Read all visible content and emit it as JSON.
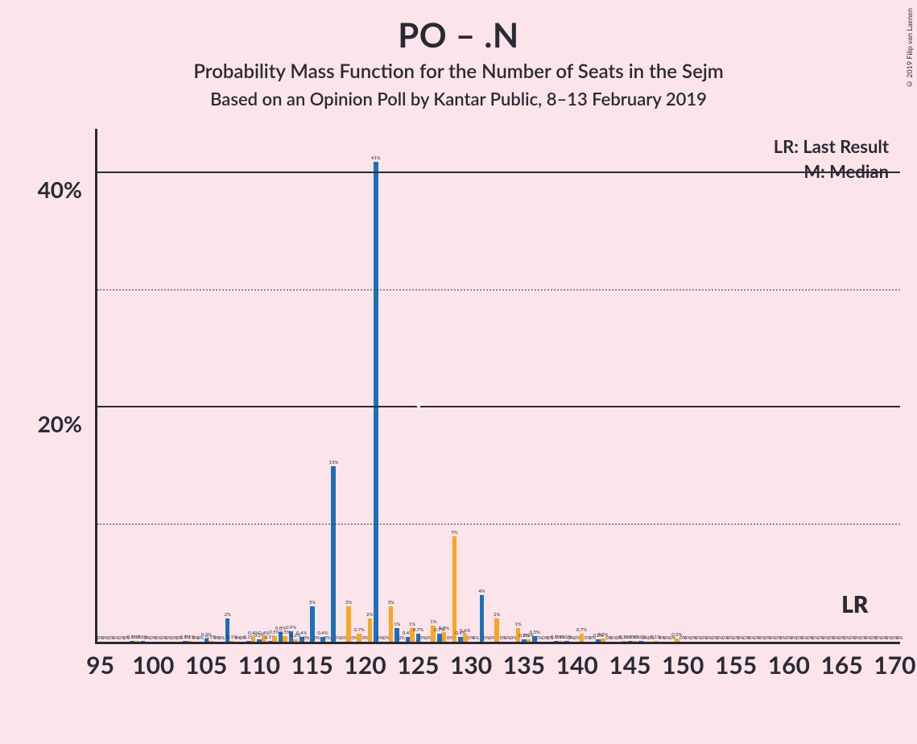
{
  "title": "PO – .N",
  "subtitle1": "Probability Mass Function for the Number of Seats in the Sejm",
  "subtitle2": "Based on an Opinion Poll by Kantar Public, 8–13 February 2019",
  "copyright": "© 2019 Filip van Laenen",
  "legend": {
    "lr": "LR: Last Result",
    "m": "M: Median"
  },
  "chart": {
    "type": "bar",
    "background_color": "#fce5ea",
    "axis_color": "#2a2a35",
    "grid_solid_color": "#2a2a35",
    "grid_dotted_color": "#2a2a3580",
    "ylim": [
      0,
      44
    ],
    "y_major_ticks": [
      20,
      40
    ],
    "y_minor_ticks": [
      10,
      30
    ],
    "y_tick_labels": {
      "20": "20%",
      "40": "40%"
    },
    "x_range": [
      95,
      170
    ],
    "x_major_step": 5,
    "bar_gap_ratio": 0.15,
    "series_colors": {
      "blue": "#1d70b8",
      "orange": "#f6a724"
    },
    "title_fontsize": 42,
    "subtitle_fontsize": 24,
    "axis_label_fontsize": 30,
    "bar_label_fontsize": 6,
    "lr_position": 166,
    "lr_text": "LR",
    "median_position": 125,
    "median_y_percent": 20,
    "data": [
      {
        "x": 95,
        "blue": 0,
        "orange": 0
      },
      {
        "x": 96,
        "blue": 0,
        "orange": 0
      },
      {
        "x": 97,
        "blue": 0,
        "orange": 0
      },
      {
        "x": 98,
        "blue": 0.1,
        "orange": 0.1
      },
      {
        "x": 99,
        "blue": 0.1,
        "orange": 0
      },
      {
        "x": 100,
        "blue": 0,
        "orange": 0
      },
      {
        "x": 101,
        "blue": 0,
        "orange": 0
      },
      {
        "x": 102,
        "blue": 0,
        "orange": 0
      },
      {
        "x": 103,
        "blue": 0.1,
        "orange": 0.1
      },
      {
        "x": 104,
        "blue": 0,
        "orange": 0
      },
      {
        "x": 105,
        "blue": 0.3,
        "orange": 0.1
      },
      {
        "x": 106,
        "blue": 0,
        "orange": 0
      },
      {
        "x": 107,
        "blue": 2,
        "orange": 0.1
      },
      {
        "x": 108,
        "blue": 0,
        "orange": 0
      },
      {
        "x": 109,
        "blue": 0.1,
        "orange": 0.4
      },
      {
        "x": 110,
        "blue": 0.2,
        "orange": 0.4
      },
      {
        "x": 111,
        "blue": 0.1,
        "orange": 0.5
      },
      {
        "x": 112,
        "blue": 0.8,
        "orange": 0.5
      },
      {
        "x": 113,
        "blue": 0.9,
        "orange": 0.2
      },
      {
        "x": 114,
        "blue": 0.4,
        "orange": 0
      },
      {
        "x": 115,
        "blue": 3,
        "orange": 0
      },
      {
        "x": 116,
        "blue": 0.4,
        "orange": 0
      },
      {
        "x": 117,
        "blue": 15,
        "orange": 0
      },
      {
        "x": 118,
        "blue": 0,
        "orange": 3
      },
      {
        "x": 119,
        "blue": 0,
        "orange": 0.7
      },
      {
        "x": 120,
        "blue": 0,
        "orange": 2
      },
      {
        "x": 121,
        "blue": 41,
        "orange": 0
      },
      {
        "x": 122,
        "blue": 0,
        "orange": 3
      },
      {
        "x": 123,
        "blue": 1.2,
        "orange": 0
      },
      {
        "x": 124,
        "blue": 0.4,
        "orange": 1.2
      },
      {
        "x": 125,
        "blue": 0.7,
        "orange": 0
      },
      {
        "x": 126,
        "blue": 0,
        "orange": 1.4
      },
      {
        "x": 127,
        "blue": 0.7,
        "orange": 0.8
      },
      {
        "x": 128,
        "blue": 0,
        "orange": 9
      },
      {
        "x": 129,
        "blue": 0.4,
        "orange": 0.6
      },
      {
        "x": 130,
        "blue": 0,
        "orange": 0
      },
      {
        "x": 131,
        "blue": 4,
        "orange": 0
      },
      {
        "x": 132,
        "blue": 0,
        "orange": 2
      },
      {
        "x": 133,
        "blue": 0,
        "orange": 0
      },
      {
        "x": 134,
        "blue": 0,
        "orange": 1.2
      },
      {
        "x": 135,
        "blue": 0.2,
        "orange": 0.2
      },
      {
        "x": 136,
        "blue": 0.5,
        "orange": 0
      },
      {
        "x": 137,
        "blue": 0,
        "orange": 0
      },
      {
        "x": 138,
        "blue": 0.1,
        "orange": 0.1
      },
      {
        "x": 139,
        "blue": 0.1,
        "orange": 0
      },
      {
        "x": 140,
        "blue": 0,
        "orange": 0.7
      },
      {
        "x": 141,
        "blue": 0,
        "orange": 0
      },
      {
        "x": 142,
        "blue": 0.2,
        "orange": 0.3
      },
      {
        "x": 143,
        "blue": 0,
        "orange": 0
      },
      {
        "x": 144,
        "blue": 0,
        "orange": 0.1
      },
      {
        "x": 145,
        "blue": 0.1,
        "orange": 0.1
      },
      {
        "x": 146,
        "blue": 0.1,
        "orange": 0
      },
      {
        "x": 147,
        "blue": 0,
        "orange": 0.1
      },
      {
        "x": 148,
        "blue": 0,
        "orange": 0
      },
      {
        "x": 149,
        "blue": 0,
        "orange": 0.3
      },
      {
        "x": 150,
        "blue": 0,
        "orange": 0
      },
      {
        "x": 151,
        "blue": 0,
        "orange": 0
      },
      {
        "x": 152,
        "blue": 0,
        "orange": 0
      },
      {
        "x": 153,
        "blue": 0,
        "orange": 0
      },
      {
        "x": 154,
        "blue": 0,
        "orange": 0
      },
      {
        "x": 155,
        "blue": 0,
        "orange": 0
      },
      {
        "x": 156,
        "blue": 0,
        "orange": 0
      },
      {
        "x": 157,
        "blue": 0,
        "orange": 0
      },
      {
        "x": 158,
        "blue": 0,
        "orange": 0
      },
      {
        "x": 159,
        "blue": 0,
        "orange": 0
      },
      {
        "x": 160,
        "blue": 0,
        "orange": 0
      },
      {
        "x": 161,
        "blue": 0,
        "orange": 0
      },
      {
        "x": 162,
        "blue": 0,
        "orange": 0
      },
      {
        "x": 163,
        "blue": 0,
        "orange": 0
      },
      {
        "x": 164,
        "blue": 0,
        "orange": 0
      },
      {
        "x": 165,
        "blue": 0,
        "orange": 0
      },
      {
        "x": 166,
        "blue": 0,
        "orange": 0
      },
      {
        "x": 167,
        "blue": 0,
        "orange": 0
      },
      {
        "x": 168,
        "blue": 0,
        "orange": 0
      },
      {
        "x": 169,
        "blue": 0,
        "orange": 0
      },
      {
        "x": 170,
        "blue": 0,
        "orange": 0
      }
    ]
  }
}
